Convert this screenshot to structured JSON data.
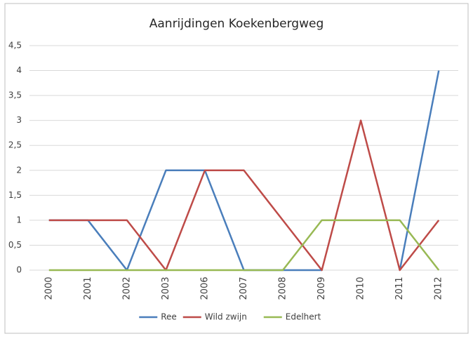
{
  "chart_data": {
    "type": "line",
    "title": "Aanrijdingen Koekenbergweg",
    "categories": [
      "2000",
      "2001",
      "2002",
      "2003",
      "2006",
      "2007",
      "2008",
      "2009",
      "2010",
      "2011",
      "2012"
    ],
    "series": [
      {
        "name": "Ree",
        "color": "#4a7ebb",
        "values": [
          1,
          1,
          0,
          2,
          2,
          0,
          0,
          0,
          null,
          0,
          4
        ]
      },
      {
        "name": "Wild zwijn",
        "color": "#be4b48",
        "values": [
          1,
          1,
          1,
          0,
          2,
          2,
          1,
          0,
          3,
          0,
          1
        ]
      },
      {
        "name": "Edelhert",
        "color": "#98b954",
        "values": [
          0,
          0,
          0,
          0,
          0,
          0,
          0,
          1,
          1,
          1,
          0
        ]
      }
    ],
    "ylim": [
      0,
      4.5
    ],
    "yticks": [
      0,
      {
        "value": 0.5,
        "label": "0,5"
      },
      1,
      {
        "value": 1.5,
        "label": "1,5"
      },
      2,
      {
        "value": 2.5,
        "label": "2,5"
      },
      3,
      {
        "value": 3.5,
        "label": "3,5"
      },
      4,
      {
        "value": 4.5,
        "label": "4,5"
      }
    ],
    "grid": true,
    "legend": "bottom"
  }
}
